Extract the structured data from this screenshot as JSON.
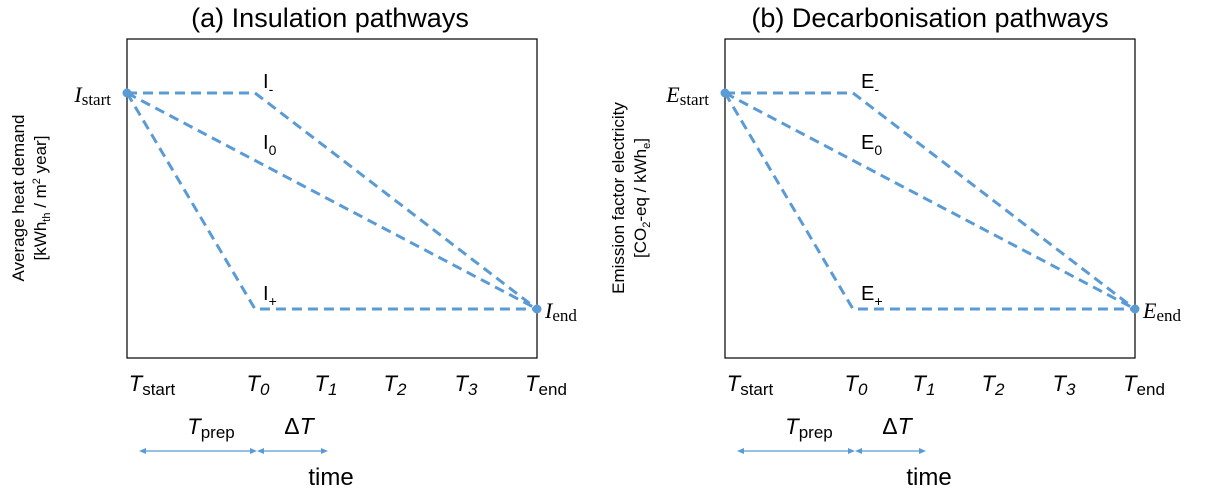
{
  "panels": [
    {
      "title": "(a) Insulation pathways",
      "ylabel_line1": "Average heat demand",
      "ylabel_line2_pre": "[kWh",
      "ylabel_line2_sub": "th",
      "ylabel_line2_mid": " / m",
      "ylabel_line2_sup": "2",
      "ylabel_line2_post": " year]",
      "start_symbol": "I",
      "start_sub": "start",
      "end_symbol": "I",
      "end_sub": "end",
      "paths": [
        {
          "letter": "I",
          "sub": "-"
        },
        {
          "letter": "I",
          "sub": "0"
        },
        {
          "letter": "I",
          "sub": "+"
        }
      ]
    },
    {
      "title": "(b) Decarbonisation pathways",
      "ylabel_line1": "Emission factor electricity",
      "ylabel_line2_pre": "[CO",
      "ylabel_line2_sub": "2",
      "ylabel_line2_mid": "-eq / kWh",
      "ylabel_line2_sup": "e",
      "ylabel_line2_post": "]",
      "start_symbol": "E",
      "start_sub": "start",
      "end_symbol": "E",
      "end_sub": "end",
      "paths": [
        {
          "letter": "E",
          "sub": "-"
        },
        {
          "letter": "E",
          "sub": "0"
        },
        {
          "letter": "E",
          "sub": "+"
        }
      ]
    }
  ],
  "ticks": {
    "start": {
      "main": "T",
      "sub": "start"
    },
    "t0": {
      "main": "T",
      "sub": "0"
    },
    "t1": {
      "main": "T",
      "sub": "1"
    },
    "t2": {
      "main": "T",
      "sub": "2"
    },
    "t3": {
      "main": "T",
      "sub": "3"
    },
    "end": {
      "main": "T",
      "sub": "end"
    }
  },
  "tprep": {
    "main": "T",
    "sub": "prep"
  },
  "delta": {
    "symbol": "Δ",
    "main": "T"
  },
  "time_label": "time",
  "colors": {
    "line": "#5b9bd5",
    "frame": "#000000"
  }
}
